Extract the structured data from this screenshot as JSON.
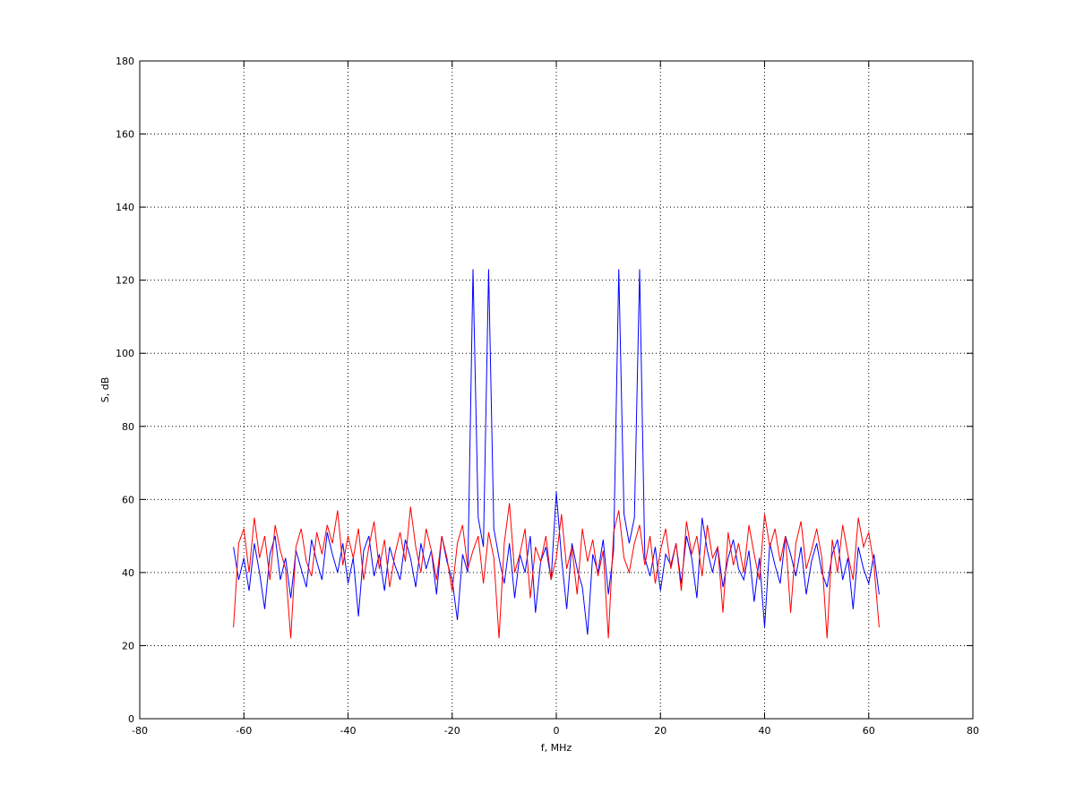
{
  "chart_data": {
    "type": "line",
    "xlabel": "f, MHz",
    "ylabel": "S, dB",
    "x": [
      -62,
      -61,
      -60,
      -59,
      -58,
      -57,
      -56,
      -55,
      -54,
      -53,
      -52,
      -51,
      -50,
      -49,
      -48,
      -47,
      -46,
      -45,
      -44,
      -43,
      -42,
      -41,
      -40,
      -39,
      -38,
      -37,
      -36,
      -35,
      -34,
      -33,
      -32,
      -31,
      -30,
      -29,
      -28,
      -27,
      -26,
      -25,
      -24,
      -23,
      -22,
      -21,
      -20,
      -19,
      -18,
      -17,
      -16,
      -15,
      -14,
      -13,
      -12,
      -11,
      -10,
      -9,
      -8,
      -7,
      -6,
      -5,
      -4,
      -3,
      -2,
      -1,
      0,
      1,
      2,
      3,
      4,
      5,
      6,
      7,
      8,
      9,
      10,
      11,
      12,
      13,
      14,
      15,
      16,
      17,
      18,
      19,
      20,
      21,
      22,
      23,
      24,
      25,
      26,
      27,
      28,
      29,
      30,
      31,
      32,
      33,
      34,
      35,
      36,
      37,
      38,
      39,
      40,
      41,
      42,
      43,
      44,
      45,
      46,
      47,
      48,
      49,
      50,
      51,
      52,
      53,
      54,
      55,
      56,
      57,
      58,
      59,
      60,
      61,
      62
    ],
    "series": [
      {
        "color": "#0000ff",
        "values": [
          47,
          38,
          44,
          35,
          48,
          40,
          30,
          45,
          50,
          38,
          44,
          33,
          46,
          41,
          36,
          49,
          43,
          38,
          51,
          45,
          40,
          48,
          37,
          44,
          28,
          46,
          50,
          39,
          45,
          35,
          47,
          42,
          38,
          49,
          44,
          36,
          48,
          41,
          46,
          34,
          50,
          43,
          38,
          27,
          45,
          40,
          123,
          55,
          47,
          123,
          52,
          44,
          37,
          48,
          33,
          45,
          40,
          50,
          29,
          43,
          47,
          38,
          62,
          44,
          30,
          48,
          41,
          36,
          23,
          45,
          40,
          49,
          34,
          46,
          123,
          56,
          48,
          55,
          123,
          44,
          39,
          47,
          35,
          45,
          42,
          48,
          37,
          50,
          44,
          33,
          55,
          46,
          40,
          47,
          36,
          44,
          49,
          41,
          38,
          46,
          32,
          44,
          25,
          48,
          42,
          37,
          50,
          45,
          39,
          47,
          34,
          43,
          48,
          40,
          36,
          45,
          49,
          38,
          44,
          30,
          47,
          41,
          37,
          45,
          34
        ]
      },
      {
        "color": "#ff0000",
        "values": [
          25,
          48,
          52,
          40,
          55,
          44,
          50,
          38,
          53,
          46,
          41,
          22,
          47,
          52,
          43,
          39,
          51,
          45,
          53,
          48,
          57,
          42,
          50,
          44,
          52,
          38,
          47,
          54,
          41,
          49,
          36,
          45,
          51,
          43,
          58,
          47,
          40,
          52,
          46,
          38,
          50,
          44,
          35,
          48,
          53,
          41,
          46,
          50,
          37,
          51,
          44,
          22,
          48,
          59,
          40,
          45,
          52,
          33,
          47,
          43,
          50,
          38,
          44,
          56,
          41,
          47,
          34,
          52,
          43,
          49,
          39,
          46,
          22,
          51,
          57,
          44,
          40,
          48,
          53,
          42,
          50,
          37,
          46,
          52,
          41,
          48,
          35,
          54,
          45,
          50,
          39,
          53,
          44,
          47,
          29,
          51,
          42,
          48,
          40,
          53,
          45,
          38,
          56,
          47,
          52,
          43,
          50,
          29,
          48,
          54,
          41,
          46,
          52,
          44,
          22,
          49,
          40,
          53,
          45,
          38,
          55,
          47,
          51,
          42,
          25
        ]
      }
    ],
    "xlim": [
      -80,
      80
    ],
    "xticks": [
      -80,
      -60,
      -40,
      -20,
      0,
      20,
      40,
      60,
      80
    ],
    "ylim": [
      0,
      180
    ],
    "yticks": [
      0,
      20,
      40,
      60,
      80,
      100,
      120,
      140,
      160,
      180
    ],
    "grid": true
  }
}
